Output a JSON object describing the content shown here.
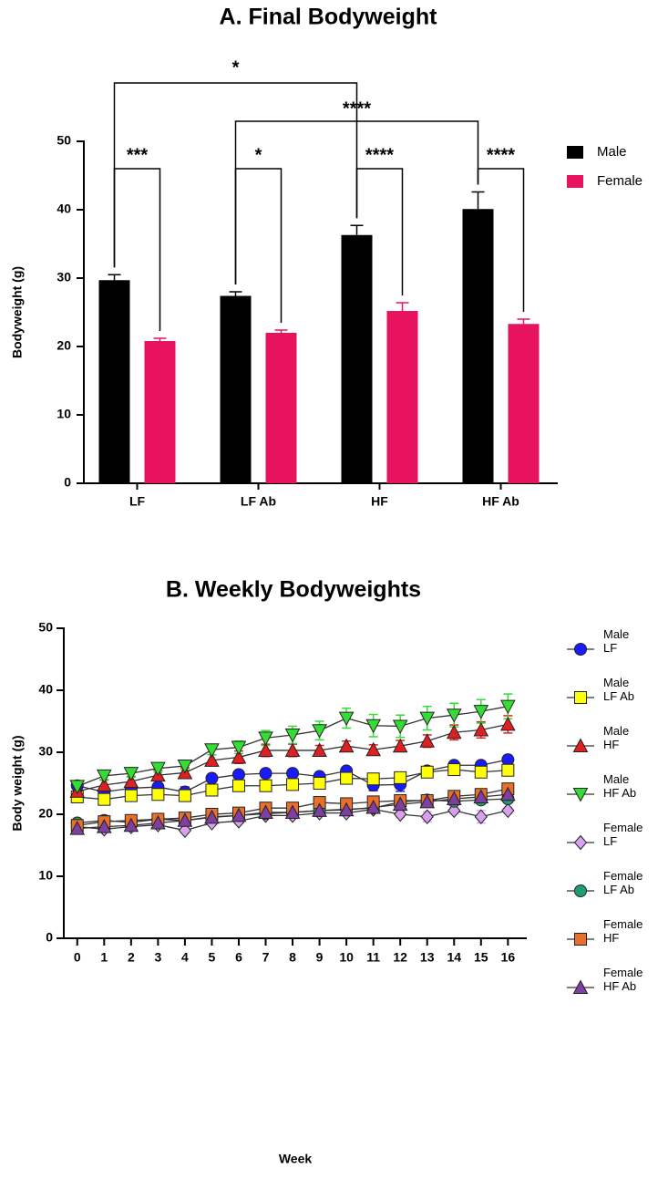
{
  "chart_data": [
    {
      "type": "bar",
      "title": "A. Final Bodyweight",
      "ylabel": "Bodyweight (g)",
      "categories": [
        "LF",
        "LF Ab",
        "HF",
        "HF Ab"
      ],
      "series": [
        {
          "name": "Male",
          "color": "#000000",
          "values": [
            29.7,
            27.4,
            36.3,
            40.1
          ],
          "errors": [
            0.8,
            0.6,
            1.4,
            2.5
          ]
        },
        {
          "name": "Female",
          "color": "#e8135f",
          "values": [
            20.8,
            22.0,
            25.2,
            23.3
          ],
          "errors": [
            0.4,
            0.4,
            1.2,
            0.7
          ]
        }
      ],
      "ylim": [
        0,
        50
      ],
      "yticks": [
        0,
        10,
        20,
        30,
        40,
        50
      ],
      "annotations": [
        "*",
        "****",
        "***",
        "*",
        "****",
        "****"
      ],
      "legend": "right"
    },
    {
      "type": "line",
      "title": "B. Weekly Bodyweights",
      "xlabel": "Week",
      "ylabel": "Body weight (g)",
      "x": [
        0,
        1,
        2,
        3,
        4,
        5,
        6,
        7,
        8,
        9,
        10,
        11,
        12,
        13,
        14,
        15,
        16
      ],
      "xlim": [
        -0.5,
        16.7
      ],
      "xticks": [
        0,
        1,
        2,
        3,
        4,
        5,
        6,
        7,
        8,
        9,
        10,
        11,
        12,
        13,
        14,
        15,
        16
      ],
      "ylim": [
        0,
        50
      ],
      "yticks": [
        0,
        10,
        20,
        30,
        40,
        50
      ],
      "series": [
        {
          "name": "Male LF",
          "color": "#1a1aff",
          "marker": "circle",
          "values": [
            24.6,
            23.6,
            24.2,
            24.4,
            23.6,
            25.8,
            26.4,
            26.6,
            26.6,
            26.1,
            27.0,
            24.7,
            24.8,
            27.0,
            27.9,
            27.9,
            28.8
          ],
          "errors": [
            0.4,
            0.7,
            0.6,
            0.5,
            0.8,
            0.6,
            0.6,
            0.6,
            0.5,
            0.5,
            0.6,
            0.9,
            1.1,
            0.6,
            0.6,
            0.6,
            0.7
          ]
        },
        {
          "name": "Male LF Ab",
          "color": "#ffff00",
          "marker": "square",
          "values": [
            22.8,
            22.4,
            23.0,
            23.2,
            23.0,
            23.9,
            24.6,
            24.6,
            24.8,
            25.0,
            25.8,
            25.7,
            25.9,
            26.8,
            27.2,
            26.8,
            27.1
          ],
          "errors": [
            0.5,
            0.5,
            0.4,
            0.5,
            0.5,
            0.5,
            0.5,
            0.5,
            0.5,
            0.5,
            0.5,
            0.5,
            0.5,
            0.5,
            0.6,
            0.6,
            0.6
          ]
        },
        {
          "name": "Male HF",
          "color": "#e02020",
          "marker": "triangle-up",
          "values": [
            23.7,
            24.7,
            25.3,
            26.3,
            26.7,
            28.7,
            29.2,
            30.3,
            30.3,
            30.3,
            31.0,
            30.4,
            31.0,
            31.8,
            33.2,
            33.6,
            34.5
          ],
          "errors": [
            0.6,
            0.8,
            0.8,
            0.8,
            0.8,
            0.9,
            1.0,
            1.0,
            1.0,
            0.8,
            0.8,
            0.8,
            0.9,
            1.0,
            1.2,
            1.3,
            1.4
          ]
        },
        {
          "name": "Male HF Ab",
          "color": "#33dd33",
          "marker": "triangle-down",
          "values": [
            24.5,
            26.2,
            26.6,
            27.4,
            27.8,
            30.4,
            30.8,
            32.3,
            32.8,
            33.5,
            35.5,
            34.3,
            34.2,
            35.5,
            36.0,
            36.6,
            37.4
          ],
          "errors": [
            0.5,
            0.6,
            0.6,
            0.6,
            0.6,
            0.8,
            1.0,
            1.2,
            1.4,
            1.5,
            1.6,
            1.8,
            1.8,
            1.9,
            1.9,
            1.9,
            2.0
          ]
        },
        {
          "name": "Female LF",
          "color": "#d9a0f0",
          "marker": "diamond",
          "values": [
            18.0,
            17.6,
            18.0,
            18.3,
            17.4,
            18.6,
            18.9,
            19.8,
            19.8,
            20.2,
            20.2,
            20.8,
            20.0,
            19.6,
            20.6,
            19.6,
            20.6
          ],
          "errors": [
            0.3,
            0.3,
            0.3,
            0.3,
            0.4,
            0.4,
            0.4,
            0.4,
            0.4,
            0.4,
            0.4,
            0.5,
            0.5,
            0.8,
            0.5,
            1.0,
            0.5
          ]
        },
        {
          "name": "Female LF Ab",
          "color": "#1f9e6e",
          "marker": "circle",
          "values": [
            18.6,
            19.0,
            18.7,
            19.2,
            19.0,
            19.6,
            19.8,
            20.1,
            20.3,
            20.6,
            20.8,
            21.0,
            22.0,
            22.3,
            22.1,
            22.3,
            22.5
          ],
          "errors": [
            0.3,
            0.3,
            0.3,
            0.3,
            0.3,
            0.3,
            0.3,
            0.3,
            0.3,
            0.3,
            0.3,
            0.3,
            0.3,
            0.3,
            0.3,
            0.3,
            0.3
          ]
        },
        {
          "name": "Female HF",
          "color": "#e8702a",
          "marker": "square",
          "values": [
            18.2,
            18.8,
            19.0,
            19.2,
            19.4,
            20.0,
            20.2,
            21.0,
            21.0,
            21.9,
            21.7,
            22.0,
            22.2,
            22.2,
            22.9,
            23.2,
            24.1
          ],
          "errors": [
            0.3,
            0.3,
            0.3,
            0.3,
            0.3,
            0.3,
            0.3,
            0.4,
            0.4,
            0.4,
            0.4,
            0.4,
            0.4,
            0.4,
            0.5,
            0.5,
            0.8
          ]
        },
        {
          "name": "Female HF Ab",
          "color": "#7e3fa0",
          "marker": "triangle-up",
          "values": [
            17.7,
            18.0,
            18.2,
            18.6,
            19.0,
            19.5,
            19.8,
            20.3,
            20.3,
            20.6,
            20.7,
            21.1,
            21.6,
            22.0,
            22.5,
            22.8,
            23.2
          ],
          "errors": [
            0.3,
            0.3,
            0.3,
            0.3,
            0.3,
            0.3,
            0.3,
            0.3,
            0.3,
            0.3,
            0.3,
            0.3,
            0.3,
            0.3,
            0.3,
            0.3,
            0.3
          ]
        }
      ],
      "legend": "right"
    }
  ]
}
